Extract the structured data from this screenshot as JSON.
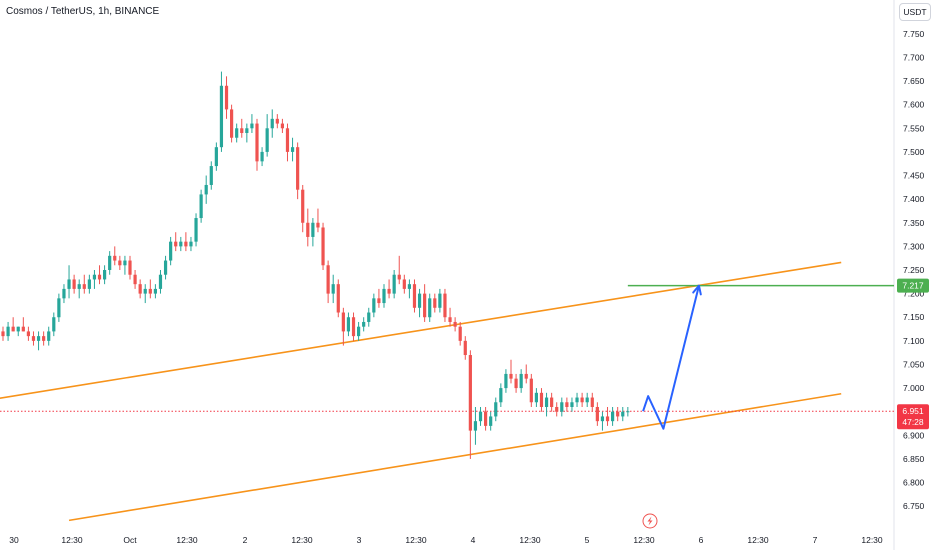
{
  "header": {
    "symbol_title": "Cosmos / TetherUS, 1h, BINANCE",
    "currency": "USDT"
  },
  "price_labels": {
    "current_price": "6.951",
    "countdown": "47:28",
    "target_price": "7.217"
  },
  "colors": {
    "up": "#26a69a",
    "down": "#ef5350",
    "channel": "#f7931a",
    "target_line": "#4caf50",
    "projection": "#2962ff",
    "current_price": "#f23645"
  },
  "icons": {
    "event_marker": "lightning-icon"
  },
  "chart_data": {
    "type": "candlestick",
    "title": "Cosmos / TetherUS, 1h, BINANCE",
    "ylabel": "USDT",
    "ylim": [
      6.725,
      7.775
    ],
    "y_ticks": [
      "7.750",
      "7.700",
      "7.650",
      "7.600",
      "7.550",
      "7.500",
      "7.450",
      "7.400",
      "7.350",
      "7.300",
      "7.250",
      "7.200",
      "7.150",
      "7.100",
      "7.050",
      "7.000",
      "6.950",
      "6.900",
      "6.850",
      "6.800",
      "6.750"
    ],
    "x_ticks": [
      "30",
      "12:30",
      "Oct",
      "12:30",
      "2",
      "12:30",
      "3",
      "12:30",
      "4",
      "12:30",
      "5",
      "12:30",
      "6",
      "12:30",
      "7",
      "12:30"
    ],
    "grid": false,
    "candles": [
      [
        7.12,
        7.13,
        7.1,
        7.11
      ],
      [
        7.11,
        7.14,
        7.1,
        7.13
      ],
      [
        7.13,
        7.15,
        7.12,
        7.12
      ],
      [
        7.12,
        7.13,
        7.11,
        7.13
      ],
      [
        7.13,
        7.15,
        7.12,
        7.12
      ],
      [
        7.12,
        7.13,
        7.1,
        7.11
      ],
      [
        7.11,
        7.12,
        7.09,
        7.1
      ],
      [
        7.1,
        7.12,
        7.08,
        7.11
      ],
      [
        7.11,
        7.12,
        7.09,
        7.1
      ],
      [
        7.1,
        7.13,
        7.09,
        7.12
      ],
      [
        7.12,
        7.16,
        7.11,
        7.15
      ],
      [
        7.15,
        7.2,
        7.14,
        7.19
      ],
      [
        7.19,
        7.22,
        7.18,
        7.21
      ],
      [
        7.21,
        7.26,
        7.19,
        7.23
      ],
      [
        7.23,
        7.24,
        7.2,
        7.21
      ],
      [
        7.21,
        7.23,
        7.19,
        7.22
      ],
      [
        7.22,
        7.24,
        7.2,
        7.21
      ],
      [
        7.21,
        7.24,
        7.2,
        7.23
      ],
      [
        7.23,
        7.25,
        7.21,
        7.24
      ],
      [
        7.24,
        7.26,
        7.22,
        7.23
      ],
      [
        7.23,
        7.26,
        7.22,
        7.25
      ],
      [
        7.25,
        7.29,
        7.24,
        7.28
      ],
      [
        7.28,
        7.3,
        7.26,
        7.27
      ],
      [
        7.27,
        7.28,
        7.25,
        7.26
      ],
      [
        7.26,
        7.28,
        7.24,
        7.27
      ],
      [
        7.27,
        7.28,
        7.23,
        7.24
      ],
      [
        7.24,
        7.25,
        7.21,
        7.22
      ],
      [
        7.22,
        7.23,
        7.19,
        7.2
      ],
      [
        7.2,
        7.22,
        7.18,
        7.21
      ],
      [
        7.21,
        7.23,
        7.19,
        7.2
      ],
      [
        7.2,
        7.22,
        7.19,
        7.21
      ],
      [
        7.21,
        7.25,
        7.2,
        7.24
      ],
      [
        7.24,
        7.28,
        7.23,
        7.27
      ],
      [
        7.27,
        7.32,
        7.26,
        7.31
      ],
      [
        7.31,
        7.33,
        7.29,
        7.3
      ],
      [
        7.3,
        7.32,
        7.29,
        7.31
      ],
      [
        7.31,
        7.33,
        7.29,
        7.3
      ],
      [
        7.3,
        7.32,
        7.29,
        7.31
      ],
      [
        7.31,
        7.37,
        7.3,
        7.36
      ],
      [
        7.36,
        7.42,
        7.35,
        7.41
      ],
      [
        7.41,
        7.45,
        7.39,
        7.43
      ],
      [
        7.43,
        7.48,
        7.42,
        7.47
      ],
      [
        7.47,
        7.52,
        7.46,
        7.51
      ],
      [
        7.51,
        7.67,
        7.5,
        7.64
      ],
      [
        7.64,
        7.66,
        7.57,
        7.59
      ],
      [
        7.59,
        7.6,
        7.52,
        7.53
      ],
      [
        7.53,
        7.56,
        7.52,
        7.55
      ],
      [
        7.55,
        7.57,
        7.53,
        7.54
      ],
      [
        7.54,
        7.56,
        7.52,
        7.55
      ],
      [
        7.55,
        7.58,
        7.54,
        7.56
      ],
      [
        7.56,
        7.57,
        7.46,
        7.48
      ],
      [
        7.48,
        7.51,
        7.47,
        7.5
      ],
      [
        7.5,
        7.58,
        7.49,
        7.55
      ],
      [
        7.55,
        7.59,
        7.53,
        7.57
      ],
      [
        7.57,
        7.58,
        7.55,
        7.56
      ],
      [
        7.56,
        7.57,
        7.54,
        7.55
      ],
      [
        7.55,
        7.56,
        7.48,
        7.5
      ],
      [
        7.5,
        7.53,
        7.48,
        7.51
      ],
      [
        7.51,
        7.52,
        7.4,
        7.42
      ],
      [
        7.42,
        7.43,
        7.33,
        7.35
      ],
      [
        7.35,
        7.38,
        7.3,
        7.32
      ],
      [
        7.32,
        7.36,
        7.3,
        7.35
      ],
      [
        7.35,
        7.38,
        7.33,
        7.34
      ],
      [
        7.34,
        7.35,
        7.25,
        7.26
      ],
      [
        7.26,
        7.27,
        7.18,
        7.2
      ],
      [
        7.2,
        7.24,
        7.18,
        7.22
      ],
      [
        7.22,
        7.23,
        7.15,
        7.16
      ],
      [
        7.16,
        7.17,
        7.09,
        7.12
      ],
      [
        7.12,
        7.16,
        7.11,
        7.15
      ],
      [
        7.15,
        7.16,
        7.1,
        7.11
      ],
      [
        7.11,
        7.14,
        7.1,
        7.13
      ],
      [
        7.13,
        7.15,
        7.12,
        7.14
      ],
      [
        7.14,
        7.17,
        7.13,
        7.16
      ],
      [
        7.16,
        7.2,
        7.15,
        7.19
      ],
      [
        7.19,
        7.21,
        7.17,
        7.18
      ],
      [
        7.18,
        7.22,
        7.17,
        7.21
      ],
      [
        7.21,
        7.23,
        7.19,
        7.2
      ],
      [
        7.2,
        7.25,
        7.19,
        7.24
      ],
      [
        7.24,
        7.28,
        7.22,
        7.23
      ],
      [
        7.23,
        7.24,
        7.2,
        7.21
      ],
      [
        7.21,
        7.23,
        7.19,
        7.22
      ],
      [
        7.22,
        7.23,
        7.16,
        7.17
      ],
      [
        7.17,
        7.21,
        7.15,
        7.2
      ],
      [
        7.2,
        7.22,
        7.14,
        7.15
      ],
      [
        7.15,
        7.2,
        7.14,
        7.19
      ],
      [
        7.19,
        7.2,
        7.16,
        7.17
      ],
      [
        7.17,
        7.21,
        7.16,
        7.2
      ],
      [
        7.2,
        7.21,
        7.14,
        7.15
      ],
      [
        7.15,
        7.17,
        7.13,
        7.14
      ],
      [
        7.14,
        7.15,
        7.12,
        7.13
      ],
      [
        7.13,
        7.14,
        7.09,
        7.1
      ],
      [
        7.1,
        7.11,
        7.06,
        7.07
      ],
      [
        7.07,
        7.08,
        6.85,
        6.91
      ],
      [
        6.91,
        6.96,
        6.88,
        6.93
      ],
      [
        6.93,
        6.96,
        6.92,
        6.95
      ],
      [
        6.95,
        6.96,
        6.91,
        6.92
      ],
      [
        6.92,
        6.95,
        6.91,
        6.94
      ],
      [
        6.94,
        6.98,
        6.93,
        6.97
      ],
      [
        6.97,
        7.01,
        6.96,
        7.0
      ],
      [
        7.0,
        7.04,
        6.99,
        7.03
      ],
      [
        7.03,
        7.06,
        7.01,
        7.02
      ],
      [
        7.02,
        7.03,
        6.99,
        7.0
      ],
      [
        7.0,
        7.04,
        6.99,
        7.03
      ],
      [
        7.03,
        7.05,
        7.01,
        7.02
      ],
      [
        7.02,
        7.03,
        6.96,
        6.97
      ],
      [
        6.97,
        7.0,
        6.96,
        6.99
      ],
      [
        6.99,
        7.0,
        6.95,
        6.96
      ],
      [
        6.96,
        6.99,
        6.94,
        6.98
      ],
      [
        6.98,
        6.99,
        6.95,
        6.96
      ],
      [
        6.96,
        6.97,
        6.94,
        6.95
      ],
      [
        6.95,
        6.98,
        6.94,
        6.97
      ],
      [
        6.97,
        6.98,
        6.95,
        6.96
      ],
      [
        6.96,
        6.98,
        6.95,
        6.97
      ],
      [
        6.97,
        6.99,
        6.96,
        6.98
      ],
      [
        6.98,
        6.99,
        6.96,
        6.97
      ],
      [
        6.97,
        6.99,
        6.96,
        6.98
      ],
      [
        6.98,
        6.99,
        6.95,
        6.96
      ],
      [
        6.96,
        6.97,
        6.92,
        6.93
      ],
      [
        6.93,
        6.95,
        6.91,
        6.94
      ],
      [
        6.94,
        6.96,
        6.92,
        6.93
      ],
      [
        6.93,
        6.96,
        6.92,
        6.95
      ],
      [
        6.95,
        6.96,
        6.93,
        6.94
      ],
      [
        6.94,
        6.96,
        6.93,
        6.95
      ],
      [
        6.95,
        6.96,
        6.94,
        6.951
      ]
    ],
    "channel_lines": [
      {
        "name": "upper",
        "points": [
          [
            -1,
            6.978
          ],
          [
            165,
            7.266
          ]
        ]
      },
      {
        "name": "lower",
        "points": [
          [
            13,
            6.72
          ],
          [
            165,
            6.988
          ]
        ]
      }
    ],
    "target_line": {
      "value": 7.217,
      "x_from": 123,
      "x_to": 165
    },
    "projection_path": [
      [
        126,
        6.951
      ],
      [
        127,
        6.983
      ],
      [
        130,
        6.914
      ],
      [
        137,
        7.217
      ]
    ],
    "current_price": 6.951
  }
}
